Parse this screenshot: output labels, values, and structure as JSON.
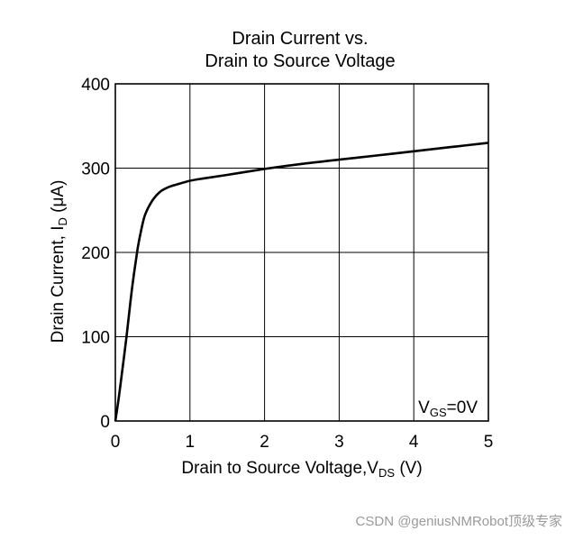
{
  "chart_data": {
    "type": "line",
    "title_lines": [
      "Drain Current vs.",
      "Drain to Source Voltage"
    ],
    "xlabel": {
      "text": "Drain to Source Voltage,V",
      "sub": "DS",
      "suffix": " (V)"
    },
    "ylabel": {
      "text": "Drain Current, I",
      "sub": "D",
      "suffix": " (μA)"
    },
    "xlim": [
      0,
      5
    ],
    "ylim": [
      0,
      400
    ],
    "xticks": [
      "0",
      "1",
      "2",
      "3",
      "4",
      "5"
    ],
    "yticks": [
      "0",
      "100",
      "200",
      "300",
      "400"
    ],
    "grid": true,
    "annotation": {
      "prefix": "V",
      "sub": "GS",
      "suffix": "=0V"
    },
    "series": [
      {
        "x": [
          0,
          0.05,
          0.1,
          0.15,
          0.2,
          0.25,
          0.3,
          0.35,
          0.4,
          0.5,
          0.6,
          0.7,
          0.8,
          1.0,
          1.2,
          1.5,
          2.0,
          2.5,
          3.0,
          3.5,
          4.0,
          4.5,
          5.0
        ],
        "y": [
          0,
          30,
          65,
          100,
          140,
          175,
          205,
          228,
          245,
          262,
          272,
          277,
          280,
          285,
          288,
          292,
          299,
          305,
          310,
          315,
          320,
          325,
          330
        ]
      }
    ],
    "line_color": "#000000"
  },
  "watermark": "CSDN @geniusNMRobot顶级专家"
}
